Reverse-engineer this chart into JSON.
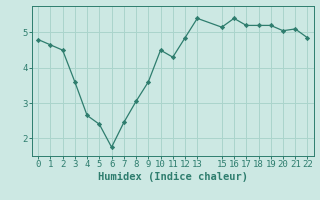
{
  "x": [
    0,
    1,
    2,
    3,
    4,
    5,
    6,
    7,
    8,
    9,
    10,
    11,
    12,
    13,
    15,
    16,
    17,
    18,
    19,
    20,
    21,
    22
  ],
  "y": [
    4.8,
    4.65,
    4.5,
    3.6,
    2.65,
    2.4,
    1.75,
    2.45,
    3.05,
    3.6,
    4.5,
    4.3,
    4.85,
    5.4,
    5.15,
    5.4,
    5.2,
    5.2,
    5.2,
    5.05,
    5.1,
    4.85
  ],
  "line_color": "#2e7d6e",
  "marker": "D",
  "marker_size": 2.2,
  "bg_color": "#cce8e3",
  "grid_color": "#aad4cc",
  "axis_color": "#2e7d6e",
  "xlabel": "Humidex (Indice chaleur)",
  "xlabel_fontsize": 7.5,
  "tick_fontsize": 6.5,
  "ylim": [
    1.5,
    5.75
  ],
  "xlim": [
    -0.5,
    22.5
  ],
  "yticks": [
    2,
    3,
    4,
    5
  ],
  "xticks": [
    0,
    1,
    2,
    3,
    4,
    5,
    6,
    7,
    8,
    9,
    10,
    11,
    12,
    13,
    15,
    16,
    17,
    18,
    19,
    20,
    21,
    22
  ]
}
